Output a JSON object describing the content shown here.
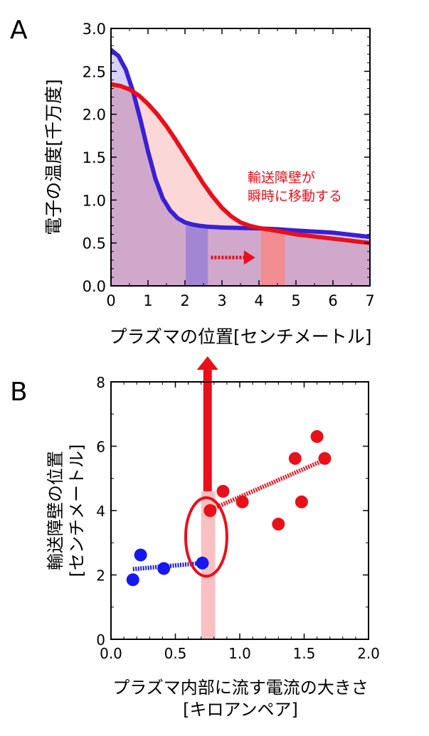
{
  "chart_data": [
    {
      "panel_label": "A",
      "type": "line",
      "xlabel": "プラズマの位置[センチメートル]",
      "ylabel": "電子の温度[千万度]",
      "xlim": [
        0,
        7
      ],
      "ylim": [
        0,
        3.0
      ],
      "xticks": [
        "0",
        "1",
        "2",
        "3",
        "4",
        "5",
        "6",
        "7"
      ],
      "yticks": [
        "0.0",
        "0.5",
        "1.0",
        "1.5",
        "2.0",
        "2.5",
        "3.0"
      ],
      "grid": false,
      "series": [
        {
          "color": "#3a1fd6",
          "x": [
            0,
            0.2,
            0.4,
            0.6,
            0.8,
            1.0,
            1.2,
            1.4,
            1.6,
            1.8,
            2.0,
            2.2,
            2.4,
            2.6,
            2.8,
            3.0,
            3.5,
            4.0,
            4.5,
            5.0,
            6.0,
            7.0
          ],
          "y": [
            2.75,
            2.68,
            2.52,
            2.26,
            1.93,
            1.57,
            1.25,
            1.02,
            0.88,
            0.79,
            0.74,
            0.715,
            0.7,
            0.69,
            0.685,
            0.68,
            0.675,
            0.67,
            0.66,
            0.645,
            0.62,
            0.57
          ]
        },
        {
          "color": "#e8101a",
          "x": [
            0,
            0.25,
            0.5,
            0.75,
            1.0,
            1.25,
            1.5,
            1.75,
            2.0,
            2.25,
            2.5,
            2.75,
            3.0,
            3.25,
            3.5,
            3.75,
            4.0,
            4.5,
            5.0,
            5.5,
            6.0,
            6.5,
            7.0
          ],
          "y": [
            2.35,
            2.33,
            2.29,
            2.22,
            2.12,
            2.0,
            1.86,
            1.7,
            1.53,
            1.36,
            1.19,
            1.04,
            0.91,
            0.81,
            0.74,
            0.7,
            0.675,
            0.64,
            0.6,
            0.575,
            0.55,
            0.525,
            0.5
          ]
        }
      ],
      "bands": [
        {
          "x": [
            2.02,
            2.62
          ],
          "color": "#9b80d4"
        },
        {
          "x": [
            4.05,
            4.7
          ],
          "color": "#f8888a"
        }
      ],
      "arrow": {
        "from": [
          2.7,
          0.33
        ],
        "to": [
          3.9,
          0.33
        ],
        "color": "#e8101a"
      },
      "annotation": {
        "lines": [
          "輸送障壁が",
          "瞬時に移動する"
        ],
        "color": "#e8101a"
      }
    },
    {
      "panel_label": "B",
      "type": "scatter",
      "xlabel_lines": [
        "プラズマ内部に流す電流の大きさ",
        "[キロアンペア]"
      ],
      "ylabel_lines": [
        "輸送障壁の位置",
        "[センチメートル]"
      ],
      "xlim": [
        0,
        2.0
      ],
      "ylim": [
        0,
        8
      ],
      "xticks": [
        "0.0",
        "0.5",
        "1.0",
        "1.5",
        "2.0"
      ],
      "yticks": [
        "0",
        "2",
        "4",
        "6",
        "8"
      ],
      "grid": false,
      "series": [
        {
          "color": "#1818ee",
          "points": [
            [
              0.17,
              1.85
            ],
            [
              0.23,
              2.62
            ],
            [
              0.41,
              2.2
            ],
            [
              0.71,
              2.37
            ]
          ],
          "trend": [
            [
              0.17,
              2.18
            ],
            [
              0.71,
              2.37
            ]
          ]
        },
        {
          "color": "#e8101a",
          "points": [
            [
              0.77,
              4.0
            ],
            [
              0.87,
              4.6
            ],
            [
              1.02,
              4.27
            ],
            [
              1.3,
              3.58
            ],
            [
              1.43,
              5.62
            ],
            [
              1.48,
              4.27
            ],
            [
              1.6,
              6.3
            ],
            [
              1.66,
              5.62
            ]
          ],
          "trend": [
            [
              0.77,
              4.02
            ],
            [
              1.66,
              5.58
            ]
          ]
        }
      ],
      "band": {
        "x": [
          0.7,
          0.81
        ],
        "color": "#f9c0c2"
      },
      "up_arrow": {
        "x": 0.75,
        "from_y": 4.6,
        "color": "#e8101a"
      },
      "ellipse": {
        "cx": 0.74,
        "cy": 3.18,
        "rx": 0.16,
        "ry": 1.22,
        "color": "#e8101a"
      }
    }
  ]
}
